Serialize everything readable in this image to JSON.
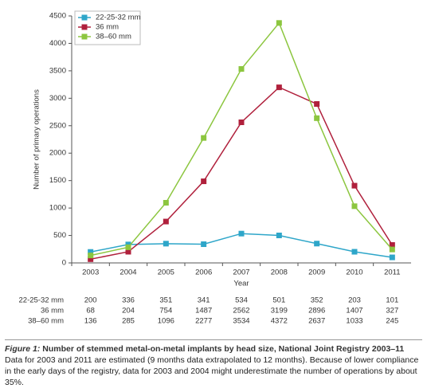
{
  "chart_data": {
    "type": "line",
    "categories": [
      "2003",
      "2004",
      "2005",
      "2006",
      "2007",
      "2008",
      "2009",
      "2010",
      "2011"
    ],
    "series": [
      {
        "name": "22-25-32 mm",
        "color": "#2ea6c9",
        "values": [
          200,
          336,
          351,
          341,
          534,
          501,
          352,
          203,
          101
        ]
      },
      {
        "name": "36 mm",
        "color": "#b0203c",
        "values": [
          68,
          204,
          754,
          1487,
          2562,
          3199,
          2896,
          1407,
          327
        ]
      },
      {
        "name": "38–60 mm",
        "color": "#8cc63f",
        "values": [
          136,
          285,
          1096,
          2277,
          3534,
          4372,
          2637,
          1033,
          245
        ]
      }
    ],
    "ylim": [
      0,
      4500
    ],
    "yticks": [
      0,
      500,
      1000,
      1500,
      2000,
      2500,
      3000,
      3500,
      4000,
      4500
    ],
    "y_label": "Number of primary operations",
    "x_label": "Year",
    "legend": "top-left",
    "caption_label": "Figure 1:",
    "caption_title": "Number of stemmed metal-on-metal implants by head size, National Joint Registry 2003–11",
    "caption_note": "Data for 2003 and 2011 are estimated (9 months data extrapolated to 12 months). Because of lower compliance in the early days of the registry, data for 2003 and 2004 might underestimate the number of operations by about 35%."
  }
}
